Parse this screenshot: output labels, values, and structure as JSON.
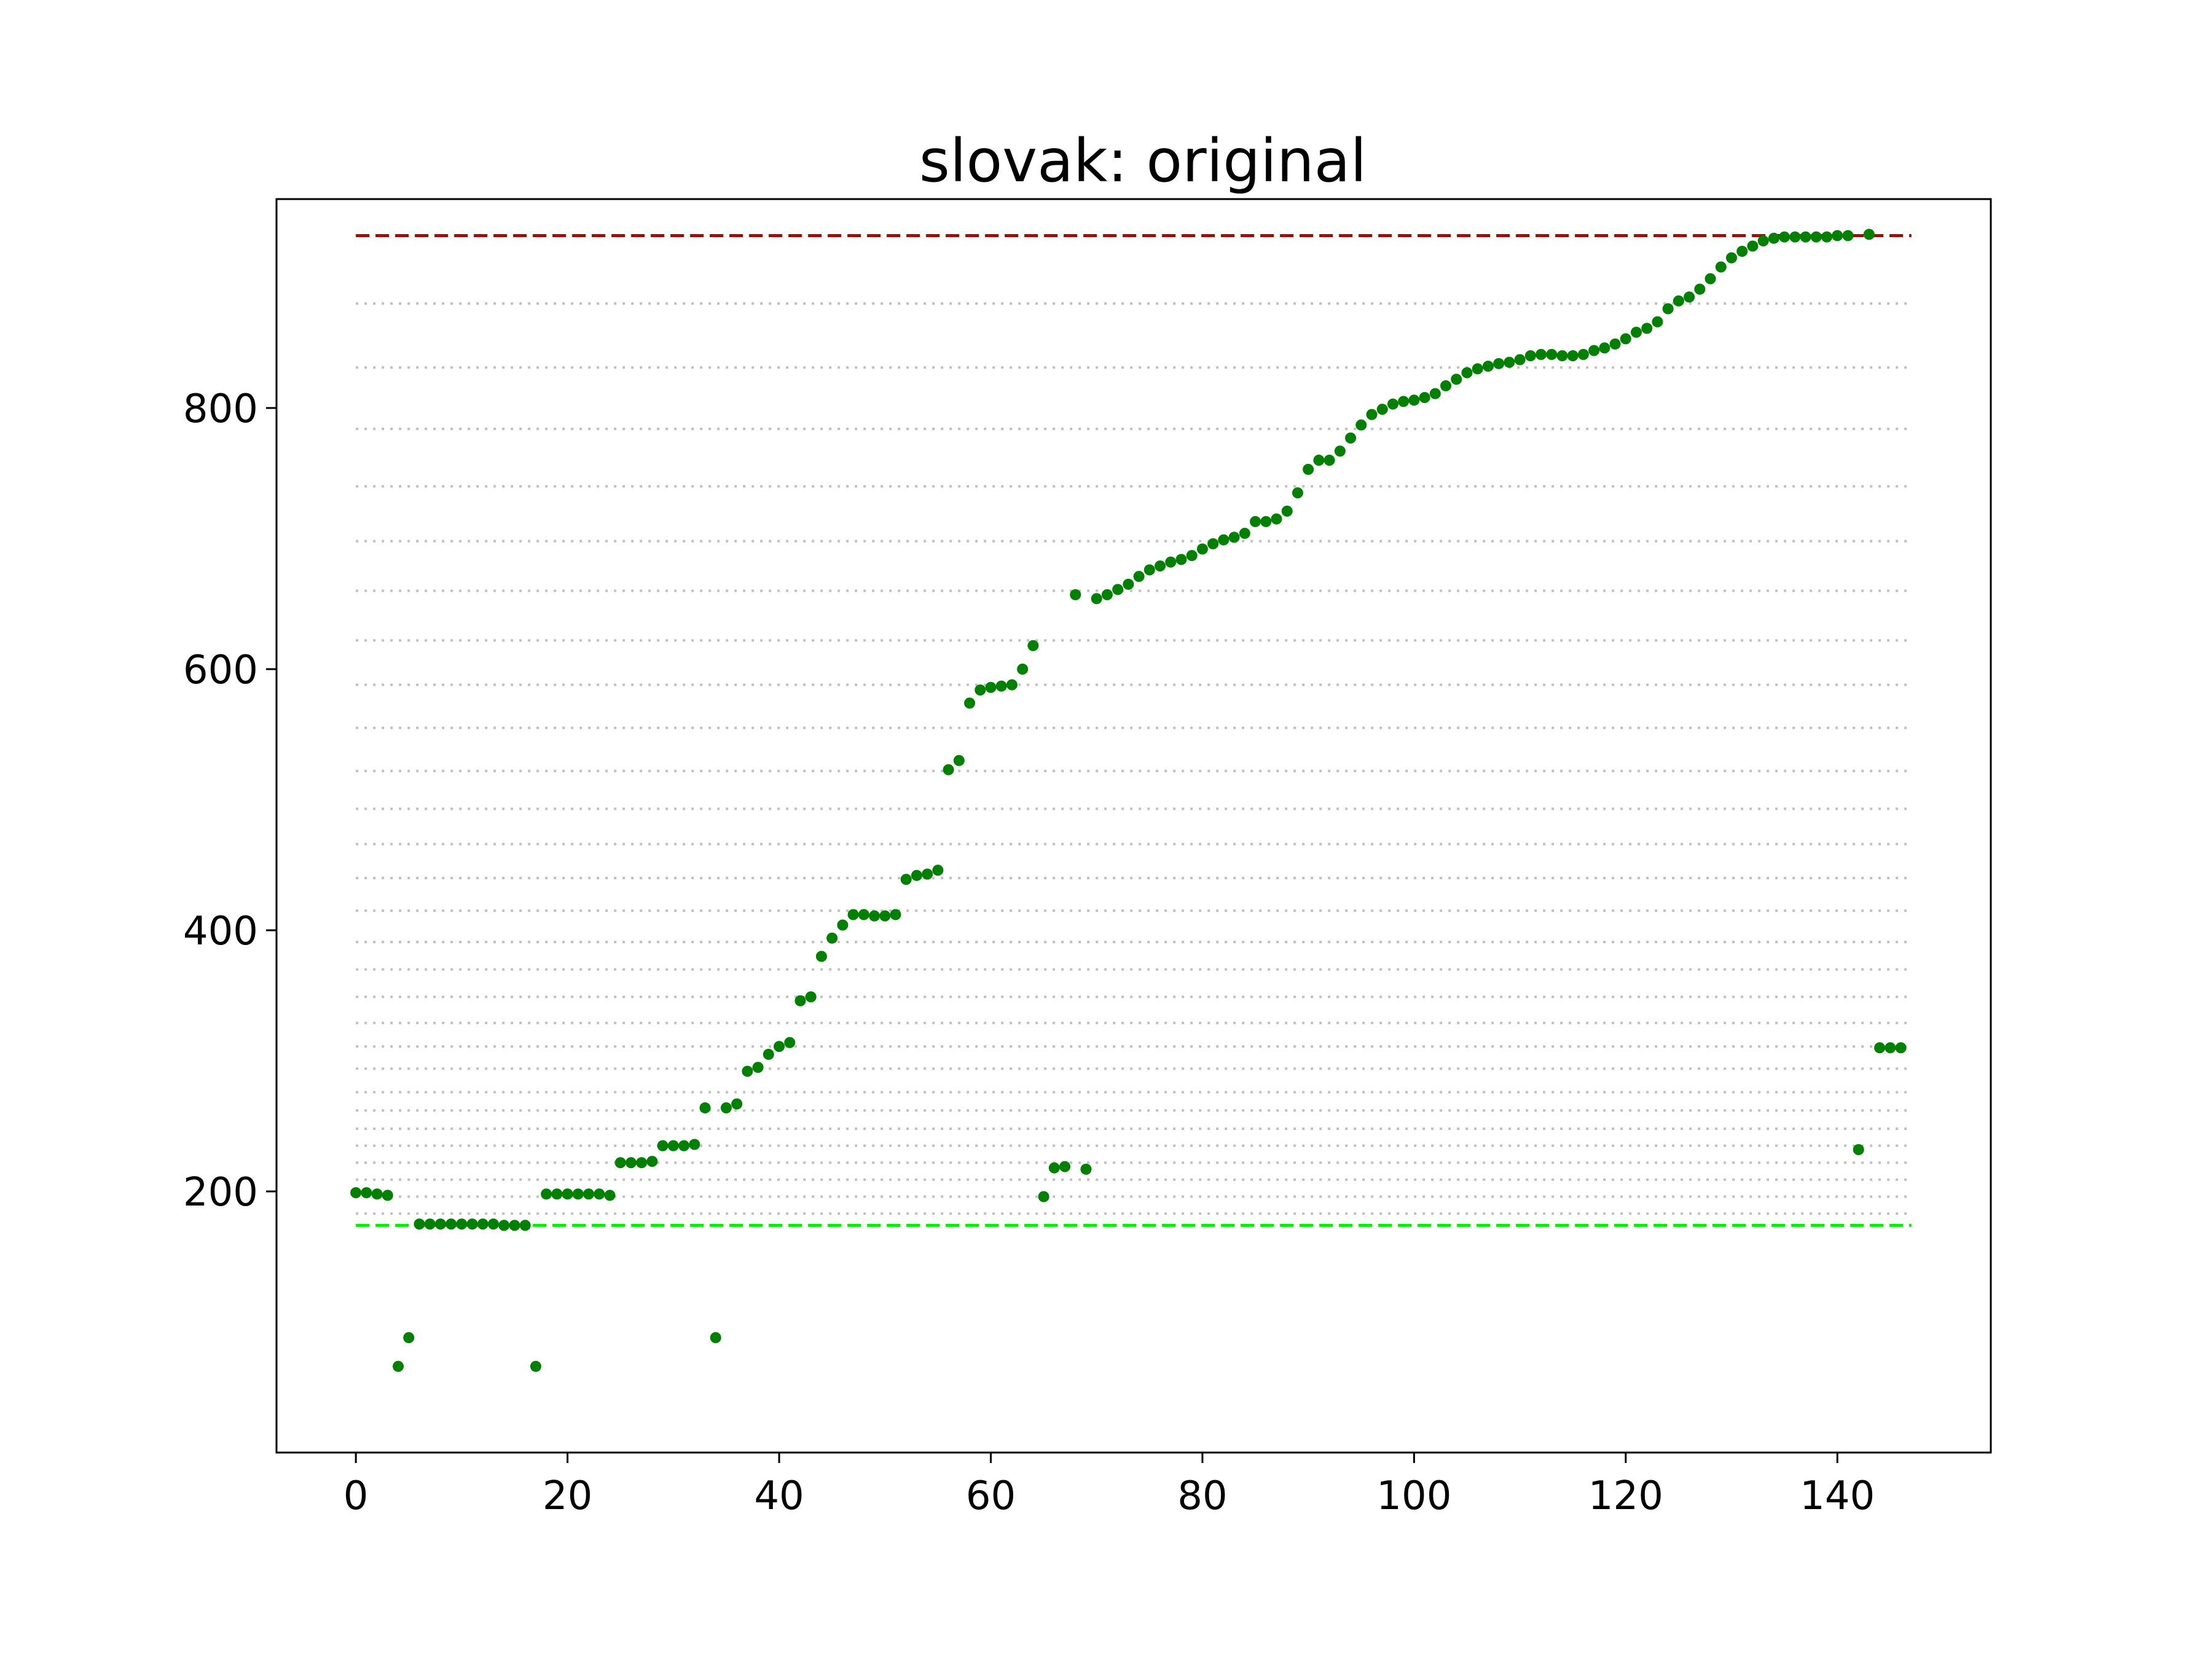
{
  "chart_data": {
    "type": "scatter",
    "title": "slovak: original",
    "xlabel": "",
    "ylabel": "",
    "xlim": [
      -7.5,
      154.5
    ],
    "ylim": [
      0,
      960
    ],
    "x_ticks": [
      0,
      20,
      40,
      60,
      80,
      100,
      120,
      140
    ],
    "y_ticks": [
      200,
      400,
      600,
      800
    ],
    "grid": false,
    "point_color": "#008000",
    "upper_reference_line": {
      "value": 932,
      "color": "#b00000",
      "style": "dashed"
    },
    "lower_reference_line": {
      "value": 174,
      "color": "#00ee00",
      "style": "dashed"
    },
    "guide_lines": {
      "color": "#c0c0c0",
      "style": "dotted",
      "values": [
        183,
        196,
        209,
        222,
        235,
        248,
        262,
        276,
        294,
        311,
        329,
        349,
        370,
        391,
        415,
        440,
        466,
        493,
        522,
        555,
        588,
        622,
        660,
        698,
        740,
        784,
        831,
        880
      ]
    },
    "series": [
      {
        "values": [
          [
            0,
            199
          ],
          [
            1,
            199
          ],
          [
            2,
            198
          ],
          [
            3,
            197
          ],
          [
            4,
            66
          ],
          [
            5,
            88
          ],
          [
            6,
            175
          ],
          [
            7,
            175
          ],
          [
            8,
            175
          ],
          [
            9,
            175
          ],
          [
            10,
            175
          ],
          [
            11,
            175
          ],
          [
            12,
            175
          ],
          [
            13,
            175
          ],
          [
            14,
            174
          ],
          [
            15,
            174
          ],
          [
            16,
            174
          ],
          [
            17,
            66
          ],
          [
            18,
            198
          ],
          [
            19,
            198
          ],
          [
            20,
            198
          ],
          [
            21,
            198
          ],
          [
            22,
            198
          ],
          [
            23,
            198
          ],
          [
            24,
            197
          ],
          [
            25,
            222
          ],
          [
            26,
            222
          ],
          [
            27,
            222
          ],
          [
            28,
            223
          ],
          [
            29,
            235
          ],
          [
            30,
            235
          ],
          [
            31,
            235
          ],
          [
            32,
            236
          ],
          [
            33,
            264
          ],
          [
            34,
            88
          ],
          [
            35,
            264
          ],
          [
            36,
            267
          ],
          [
            37,
            292
          ],
          [
            38,
            295
          ],
          [
            39,
            305
          ],
          [
            40,
            311
          ],
          [
            41,
            314
          ],
          [
            42,
            346
          ],
          [
            43,
            349
          ],
          [
            44,
            380
          ],
          [
            45,
            394
          ],
          [
            46,
            404
          ],
          [
            47,
            412
          ],
          [
            48,
            412
          ],
          [
            49,
            411
          ],
          [
            50,
            411
          ],
          [
            51,
            412
          ],
          [
            52,
            439
          ],
          [
            53,
            442
          ],
          [
            54,
            443
          ],
          [
            55,
            446
          ],
          [
            56,
            523
          ],
          [
            57,
            530
          ],
          [
            58,
            574
          ],
          [
            59,
            584
          ],
          [
            60,
            586
          ],
          [
            61,
            587
          ],
          [
            62,
            588
          ],
          [
            63,
            600
          ],
          [
            64,
            618
          ],
          [
            65,
            196
          ],
          [
            66,
            218
          ],
          [
            67,
            219
          ],
          [
            68,
            657
          ],
          [
            69,
            217
          ],
          [
            70,
            654
          ],
          [
            71,
            657
          ],
          [
            72,
            661
          ],
          [
            73,
            665
          ],
          [
            74,
            671
          ],
          [
            75,
            676
          ],
          [
            76,
            679
          ],
          [
            77,
            682
          ],
          [
            78,
            684
          ],
          [
            79,
            687
          ],
          [
            80,
            692
          ],
          [
            81,
            696
          ],
          [
            82,
            699
          ],
          [
            83,
            701
          ],
          [
            84,
            704
          ],
          [
            85,
            713
          ],
          [
            86,
            713
          ],
          [
            87,
            715
          ],
          [
            88,
            721
          ],
          [
            89,
            735
          ],
          [
            90,
            753
          ],
          [
            91,
            760
          ],
          [
            92,
            760
          ],
          [
            93,
            767
          ],
          [
            94,
            777
          ],
          [
            95,
            787
          ],
          [
            96,
            795
          ],
          [
            97,
            799
          ],
          [
            98,
            803
          ],
          [
            99,
            805
          ],
          [
            100,
            806
          ],
          [
            101,
            808
          ],
          [
            102,
            811
          ],
          [
            103,
            817
          ],
          [
            104,
            822
          ],
          [
            105,
            827
          ],
          [
            106,
            830
          ],
          [
            107,
            832
          ],
          [
            108,
            834
          ],
          [
            109,
            835
          ],
          [
            110,
            837
          ],
          [
            111,
            840
          ],
          [
            112,
            841
          ],
          [
            113,
            841
          ],
          [
            114,
            840
          ],
          [
            115,
            840
          ],
          [
            116,
            841
          ],
          [
            117,
            844
          ],
          [
            118,
            846
          ],
          [
            119,
            849
          ],
          [
            120,
            853
          ],
          [
            121,
            858
          ],
          [
            122,
            861
          ],
          [
            123,
            866
          ],
          [
            124,
            876
          ],
          [
            125,
            882
          ],
          [
            126,
            885
          ],
          [
            127,
            891
          ],
          [
            128,
            899
          ],
          [
            129,
            908
          ],
          [
            130,
            915
          ],
          [
            131,
            920
          ],
          [
            132,
            924
          ],
          [
            133,
            928
          ],
          [
            134,
            930
          ],
          [
            135,
            931
          ],
          [
            136,
            931
          ],
          [
            137,
            931
          ],
          [
            138,
            931
          ],
          [
            139,
            931
          ],
          [
            140,
            932
          ],
          [
            141,
            932
          ],
          [
            142,
            232
          ],
          [
            143,
            933
          ],
          [
            144,
            310
          ],
          [
            145,
            310
          ],
          [
            146,
            310
          ]
        ]
      }
    ]
  }
}
